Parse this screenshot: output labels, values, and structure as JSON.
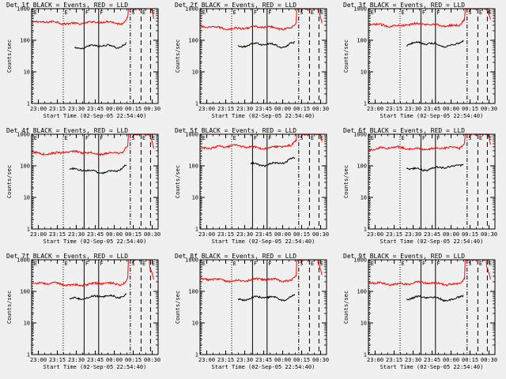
{
  "chart_data": {
    "type": "line",
    "layout": "3x3 grid",
    "shared": {
      "ylabel": "Counts/sec",
      "xlabel": "Start Time (02-Sep-05 22:54:40)",
      "ylim": [
        1,
        1000
      ],
      "yscale": "log",
      "y_ticks": [
        1,
        10,
        100,
        1000
      ],
      "x_ticks_min": [
        5.33,
        20.33,
        35.33,
        50.33,
        65.33,
        80.33,
        95.33
      ],
      "x_tick_labels": [
        "23:00",
        "23:15",
        "23:30",
        "23:45",
        "00:00",
        "00:15",
        "00:30"
      ],
      "xlim_min": [
        0,
        100
      ],
      "markers": [
        {
          "label": "E",
          "style": "dotted",
          "t": 0.8
        },
        {
          "label": "E",
          "style": "dotted",
          "t": 25
        },
        {
          "label": "F",
          "style": "solid",
          "t": 41.5
        },
        {
          "label": "F",
          "style": "solid",
          "t": 53
        },
        {
          "label": "S",
          "style": "dashdot",
          "t": 78
        },
        {
          "label": "E",
          "style": "dashed",
          "t": 86.5
        },
        {
          "label": "E",
          "style": "dashed",
          "t": 94
        }
      ],
      "series_colors": {
        "events": "#000000",
        "lld": "#ff0000"
      },
      "series_names": {
        "events": "Events",
        "lld": "LLD"
      }
    },
    "panels": [
      {
        "title": "Det 1f BLACK = Events, RED = LLD",
        "lld_base": 360,
        "evt_base": 62,
        "evt_start": 34
      },
      {
        "title": "Det 2f BLACK = Events, RED = LLD",
        "lld_base": 250,
        "evt_base": 70,
        "evt_start": 30
      },
      {
        "title": "Det 3f BLACK = Events, RED = LLD",
        "lld_base": 310,
        "evt_base": 75,
        "evt_start": 30
      },
      {
        "title": "Det 4f BLACK = Events, RED = LLD",
        "lld_base": 260,
        "evt_base": 70,
        "evt_start": 30
      },
      {
        "title": "Det 5f BLACK = Events, RED = LLD",
        "lld_base": 400,
        "evt_base": 120,
        "evt_start": 40
      },
      {
        "title": "Det 6f BLACK = Events, RED = LLD",
        "lld_base": 360,
        "evt_base": 85,
        "evt_start": 30
      },
      {
        "title": "Det 7f BLACK = Events, RED = LLD",
        "lld_base": 170,
        "evt_base": 65,
        "evt_start": 30
      },
      {
        "title": "Det 8f BLACK = Events, RED = LLD",
        "lld_base": 230,
        "evt_base": 60,
        "evt_start": 30
      },
      {
        "title": "Det 9f BLACK = Events, RED = LLD",
        "lld_base": 180,
        "evt_base": 60,
        "evt_start": 30
      }
    ]
  }
}
